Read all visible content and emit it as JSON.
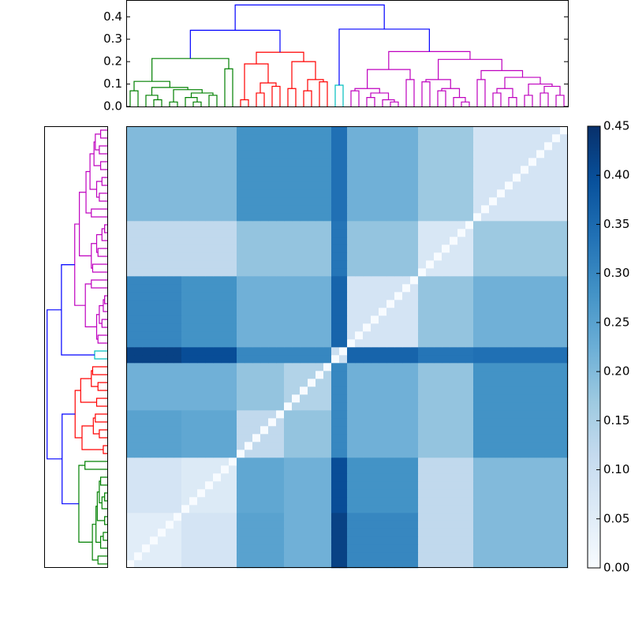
{
  "chart_data": {
    "type": "heatmap",
    "ylim": [
      0,
      0.475
    ],
    "yticks": [
      {
        "value": 0,
        "label": "0.0"
      },
      0.1,
      0.2,
      0.3,
      0.4
    ],
    "above_color": "#0000ff",
    "dendrogram": {
      "h": 0.453,
      "c": [
        {
          "h": 0.34,
          "c": [
            {
              "h": 0.214,
              "color": "#008000",
              "c": [
                {
                  "h": 0.112,
                  "c": [
                    {
                      "h": 0.07,
                      "c": [
                        0,
                        1
                      ]
                    },
                    {
                      "h": 0.085,
                      "c": [
                        {
                          "h": 0.05,
                          "c": [
                            2,
                            {
                              "h": 0.03,
                              "c": [
                                3,
                                4
                              ]
                            }
                          ]
                        },
                        {
                          "h": 0.075,
                          "c": [
                            {
                              "h": 0.02,
                              "c": [
                                5,
                                6
                              ]
                            },
                            {
                              "h": 0.06,
                              "c": [
                                {
                                  "h": 0.04,
                                  "c": [
                                    7,
                                    {
                                      "h": 0.02,
                                      "c": [
                                        8,
                                        9
                                      ]
                                    }
                                  ]
                                },
                                {
                                  "h": 0.05,
                                  "c": [
                                    10,
                                    11
                                  ]
                                }
                              ]
                            }
                          ]
                        }
                      ]
                    }
                  ]
                },
                {
                  "h": 0.168,
                  "c": [
                    12,
                    13
                  ]
                }
              ]
            },
            {
              "h": 0.242,
              "color": "#ff0000",
              "c": [
                {
                  "h": 0.19,
                  "c": [
                    {
                      "h": 0.03,
                      "c": [
                        14,
                        15
                      ]
                    },
                    {
                      "h": 0.105,
                      "c": [
                        {
                          "h": 0.06,
                          "c": [
                            16,
                            17
                          ]
                        },
                        {
                          "h": 0.09,
                          "c": [
                            18,
                            19
                          ]
                        }
                      ]
                    }
                  ]
                },
                {
                  "h": 0.2,
                  "c": [
                    {
                      "h": 0.08,
                      "c": [
                        20,
                        21
                      ]
                    },
                    {
                      "h": 0.12,
                      "c": [
                        {
                          "h": 0.07,
                          "c": [
                            22,
                            23
                          ]
                        },
                        {
                          "h": 0.11,
                          "c": [
                            24,
                            25
                          ]
                        }
                      ]
                    }
                  ]
                }
              ]
            }
          ]
        },
        {
          "h": 0.345,
          "c": [
            {
              "h": 0.095,
              "color": "#00bfbf",
              "c": [
                26,
                27
              ]
            },
            {
              "h": 0.245,
              "color": "#bf00bf",
              "c": [
                {
                  "h": 0.165,
                  "c": [
                    {
                      "h": 0.08,
                      "c": [
                        {
                          "h": 0.07,
                          "c": [
                            28,
                            29
                          ]
                        },
                        {
                          "h": 0.06,
                          "c": [
                            {
                              "h": 0.04,
                              "c": [
                                30,
                                31
                              ]
                            },
                            {
                              "h": 0.03,
                              "c": [
                                32,
                                {
                                  "h": 0.02,
                                  "c": [
                                    33,
                                    34
                                  ]
                                }
                              ]
                            }
                          ]
                        }
                      ]
                    },
                    {
                      "h": 0.12,
                      "c": [
                        35,
                        36
                      ]
                    }
                  ]
                },
                {
                  "h": 0.21,
                  "c": [
                    {
                      "h": 0.12,
                      "c": [
                        {
                          "h": 0.11,
                          "c": [
                            37,
                            38
                          ]
                        },
                        {
                          "h": 0.08,
                          "c": [
                            {
                              "h": 0.07,
                              "c": [
                                39,
                                40
                              ]
                            },
                            {
                              "h": 0.04,
                              "c": [
                                41,
                                {
                                  "h": 0.02,
                                  "c": [
                                    42,
                                    43
                                  ]
                                }
                              ]
                            }
                          ]
                        }
                      ]
                    },
                    {
                      "h": 0.16,
                      "c": [
                        {
                          "h": 0.12,
                          "c": [
                            44,
                            45
                          ]
                        },
                        {
                          "h": 0.13,
                          "c": [
                            {
                              "h": 0.08,
                              "c": [
                                {
                                  "h": 0.06,
                                  "c": [
                                    46,
                                    47
                                  ]
                                },
                                {
                                  "h": 0.04,
                                  "c": [
                                    48,
                                    49
                                  ]
                                }
                              ]
                            },
                            {
                              "h": 0.1,
                              "c": [
                                {
                                  "h": 0.05,
                                  "c": [
                                    50,
                                    51
                                  ]
                                },
                                {
                                  "h": 0.09,
                                  "c": [
                                    {
                                      "h": 0.06,
                                      "c": [
                                        52,
                                        53
                                      ]
                                    },
                                    {
                                      "h": 0.05,
                                      "c": [
                                        54,
                                        55
                                      ]
                                    }
                                  ]
                                }
                              ]
                            }
                          ]
                        }
                      ]
                    }
                  ]
                }
              ]
            }
          ]
        }
      ]
    },
    "matrix": {
      "group_sizes": [
        7,
        7,
        6,
        6,
        2,
        9,
        7,
        12
      ],
      "diagonal": 0,
      "values": [
        [
          0.05,
          0.08,
          0.25,
          0.22,
          0.42,
          0.3,
          0.12,
          0.2
        ],
        [
          0.08,
          0.06,
          0.24,
          0.22,
          0.4,
          0.28,
          0.12,
          0.2
        ],
        [
          0.25,
          0.24,
          0.12,
          0.18,
          0.3,
          0.22,
          0.18,
          0.28
        ],
        [
          0.22,
          0.22,
          0.18,
          0.14,
          0.3,
          0.22,
          0.18,
          0.28
        ],
        [
          0.42,
          0.4,
          0.3,
          0.3,
          0.1,
          0.36,
          0.33,
          0.34
        ],
        [
          0.3,
          0.28,
          0.22,
          0.22,
          0.36,
          0.08,
          0.18,
          0.22
        ],
        [
          0.12,
          0.12,
          0.18,
          0.18,
          0.33,
          0.18,
          0.07,
          0.17
        ],
        [
          0.2,
          0.2,
          0.28,
          0.28,
          0.34,
          0.22,
          0.17,
          0.08
        ]
      ]
    },
    "clim": [
      0,
      0.45
    ],
    "cticks": [
      {
        "value": 0,
        "label": "0.00"
      },
      {
        "value": 0.05,
        "label": "0.05"
      },
      {
        "value": 0.1,
        "label": "0.10"
      },
      {
        "value": 0.15,
        "label": "0.15"
      },
      {
        "value": 0.2,
        "label": "0.20"
      },
      {
        "value": 0.25,
        "label": "0.25"
      },
      {
        "value": 0.3,
        "label": "0.30"
      },
      {
        "value": 0.35,
        "label": "0.35"
      },
      {
        "value": 0.4,
        "label": "0.40"
      },
      {
        "value": 0.45,
        "label": "0.45"
      }
    ],
    "colormap": "Blues"
  }
}
